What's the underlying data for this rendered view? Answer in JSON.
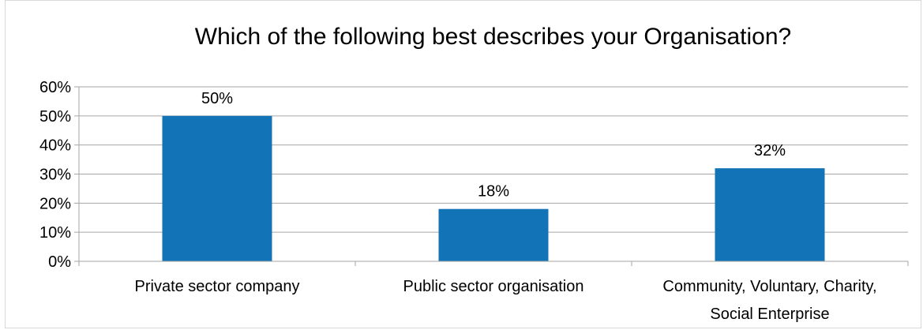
{
  "chart_data": {
    "type": "bar",
    "title": "Which of the following best describes your Organisation?",
    "categories": [
      [
        "Private sector company"
      ],
      [
        "Public sector organisation"
      ],
      [
        "Community, Voluntary, Charity,",
        "Social Enterprise"
      ]
    ],
    "values": [
      0.5,
      0.18,
      0.32
    ],
    "data_labels": [
      "50%",
      "18%",
      "32%"
    ],
    "ylim": [
      0,
      0.6
    ],
    "yticks": [
      0,
      0.1,
      0.2,
      0.3,
      0.4,
      0.5,
      0.6
    ],
    "ytick_labels": [
      "0%",
      "10%",
      "20%",
      "30%",
      "40%",
      "50%",
      "60%"
    ],
    "xlabel": "",
    "ylabel": "",
    "grid": true,
    "legend": false,
    "bar_color": "#1273b6",
    "grid_color": "#a6a6a6"
  }
}
